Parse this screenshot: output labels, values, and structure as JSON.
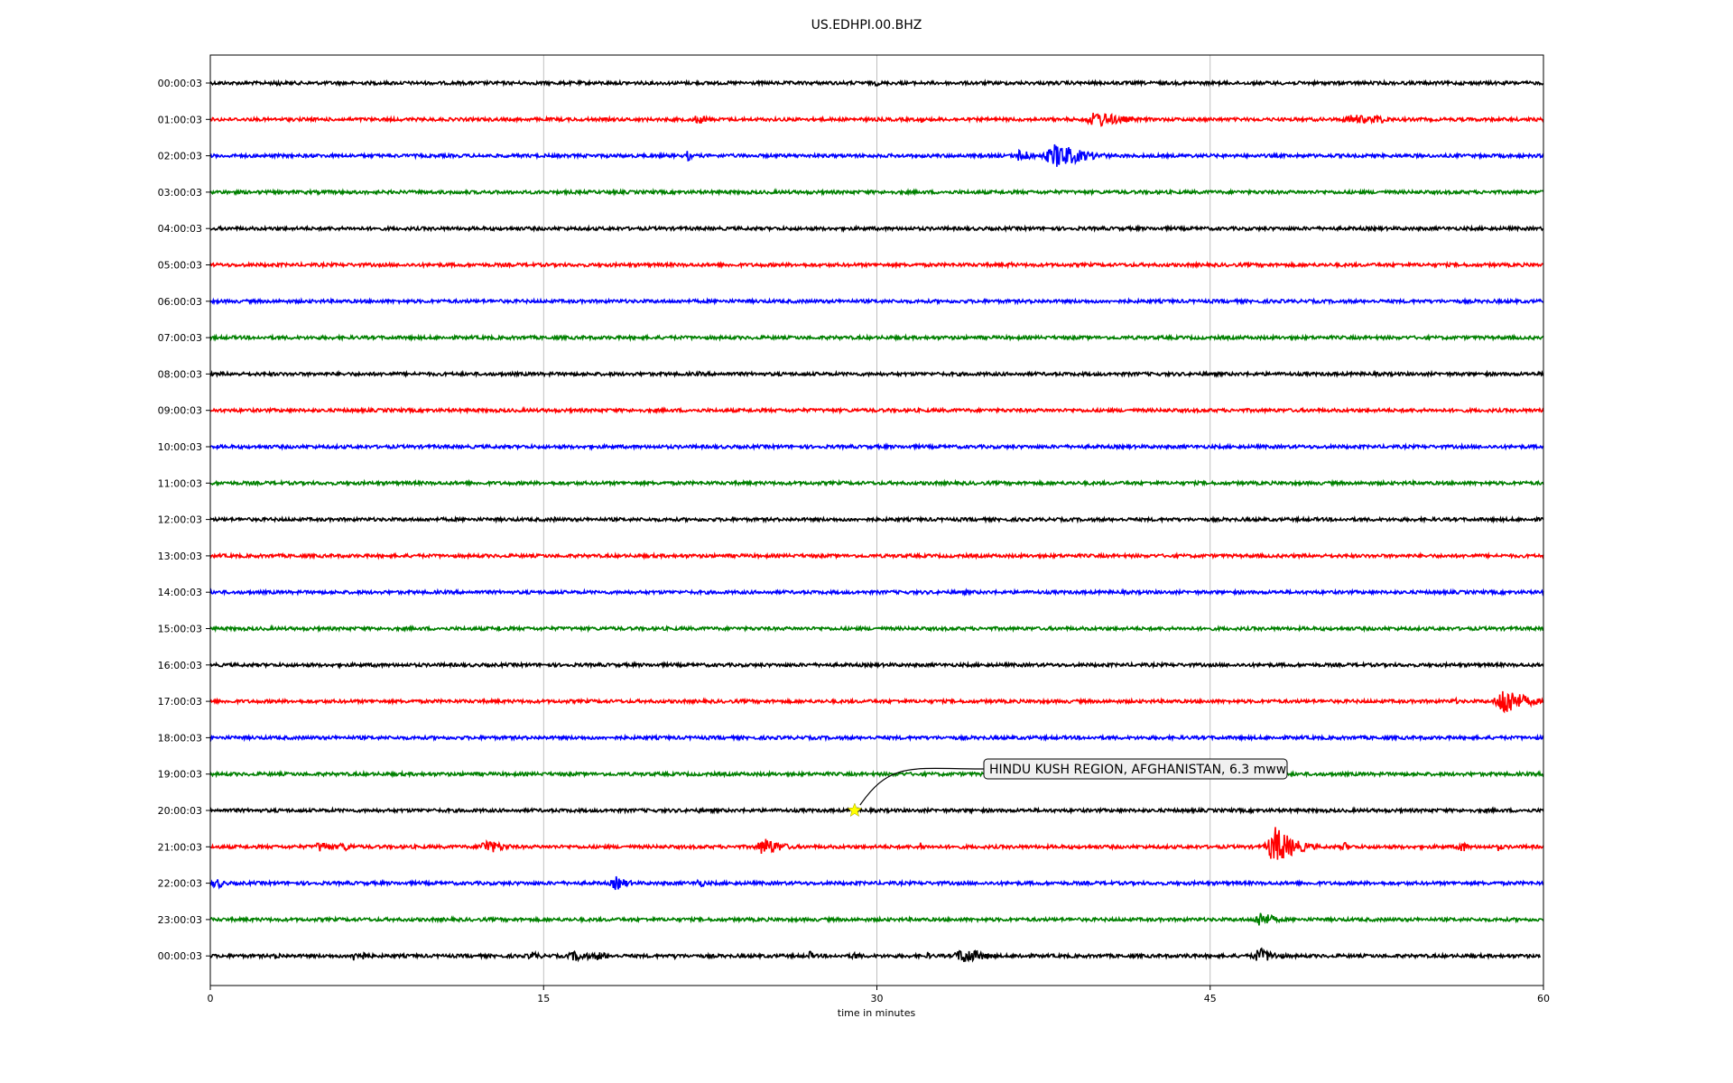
{
  "chart_data": {
    "type": "line",
    "title": "US.EDHPI.00.BHZ",
    "xlabel": "time in minutes",
    "ylabel": "",
    "xlim": [
      0,
      60
    ],
    "x_ticks": [
      "0",
      "15",
      "30",
      "45",
      "60"
    ],
    "x_tick_values": [
      0,
      15,
      30,
      45,
      60
    ],
    "grid": "vertical",
    "colors": [
      "#000000",
      "#ff0000",
      "#0000ff",
      "#008000"
    ],
    "trace_labels": [
      "00:00:03",
      "01:00:03",
      "02:00:03",
      "03:00:03",
      "04:00:03",
      "05:00:03",
      "06:00:03",
      "07:00:03",
      "08:00:03",
      "09:00:03",
      "10:00:03",
      "11:00:03",
      "12:00:03",
      "13:00:03",
      "14:00:03",
      "15:00:03",
      "16:00:03",
      "17:00:03",
      "18:00:03",
      "19:00:03",
      "20:00:03",
      "21:00:03",
      "22:00:03",
      "23:00:03",
      "00:00:03"
    ],
    "bursts": [
      [
        [
          3,
          0.6,
          0.3
        ],
        [
          30,
          0.5,
          0.3
        ]
      ],
      [
        [
          22,
          0.8,
          0.7
        ],
        [
          32,
          0.6,
          0.3
        ],
        [
          40,
          1.4,
          1.2
        ],
        [
          51.5,
          0.9,
          1.1
        ],
        [
          52.5,
          0.9,
          0.6
        ]
      ],
      [
        [
          21.5,
          1.0,
          0.2
        ],
        [
          36.5,
          1.2,
          0.6
        ],
        [
          38.2,
          2.2,
          1.2
        ]
      ],
      [],
      [],
      [
        [
          36,
          0.5,
          0.3
        ]
      ],
      [
        [
          37,
          0.5,
          0.2
        ]
      ],
      [],
      [
        [
          22,
          0.4,
          0.2
        ]
      ],
      [
        [
          8,
          0.4,
          0.2
        ]
      ],
      [],
      [],
      [
        [
          15.5,
          0.4,
          0.2
        ]
      ],
      [],
      [
        [
          34,
          0.5,
          0.2
        ]
      ],
      [
        [
          13,
          0.5,
          0.2
        ]
      ],
      [
        [
          7.5,
          0.5,
          0.2
        ]
      ],
      [
        [
          56,
          0.6,
          0.3
        ],
        [
          58.3,
          2.8,
          0.8
        ]
      ],
      [],
      [],
      [
        [
          22,
          0.4,
          0.3
        ]
      ],
      [
        [
          5,
          1.0,
          0.6
        ],
        [
          6,
          0.8,
          0.6
        ],
        [
          12.5,
          1.3,
          0.8
        ],
        [
          25,
          1.6,
          0.8
        ],
        [
          32,
          0.8,
          0.2
        ],
        [
          48,
          3.5,
          0.8
        ],
        [
          48.8,
          1.2,
          0.5
        ],
        [
          51,
          1.0,
          0.3
        ],
        [
          56.3,
          1.2,
          0.3
        ],
        [
          58,
          0.8,
          0.2
        ]
      ],
      [
        [
          0.3,
          1.0,
          0.4
        ],
        [
          18.3,
          1.2,
          0.6
        ],
        [
          22,
          0.8,
          0.4
        ]
      ],
      [
        [
          47.3,
          1.5,
          0.6
        ]
      ],
      [
        [
          3,
          0.7,
          0.3
        ],
        [
          6.6,
          1.2,
          0.5
        ],
        [
          14.5,
          0.8,
          0.5
        ],
        [
          16.5,
          0.9,
          0.9
        ],
        [
          17.5,
          0.8,
          0.6
        ],
        [
          21,
          0.6,
          0.3
        ],
        [
          27,
          0.8,
          0.3
        ],
        [
          29,
          0.7,
          0.4
        ],
        [
          32.3,
          0.7,
          0.2
        ],
        [
          34,
          1.4,
          1.0
        ],
        [
          36.5,
          0.6,
          0.3
        ],
        [
          44,
          0.7,
          0.2
        ],
        [
          47.3,
          1.3,
          0.8
        ]
      ]
    ],
    "annotation": {
      "text": "HINDU KUSH REGION, AFGHANISTAN, 6.3 mww",
      "trace_index": 20,
      "x": 29,
      "marker": "star",
      "marker_color": "#ffff00"
    }
  }
}
